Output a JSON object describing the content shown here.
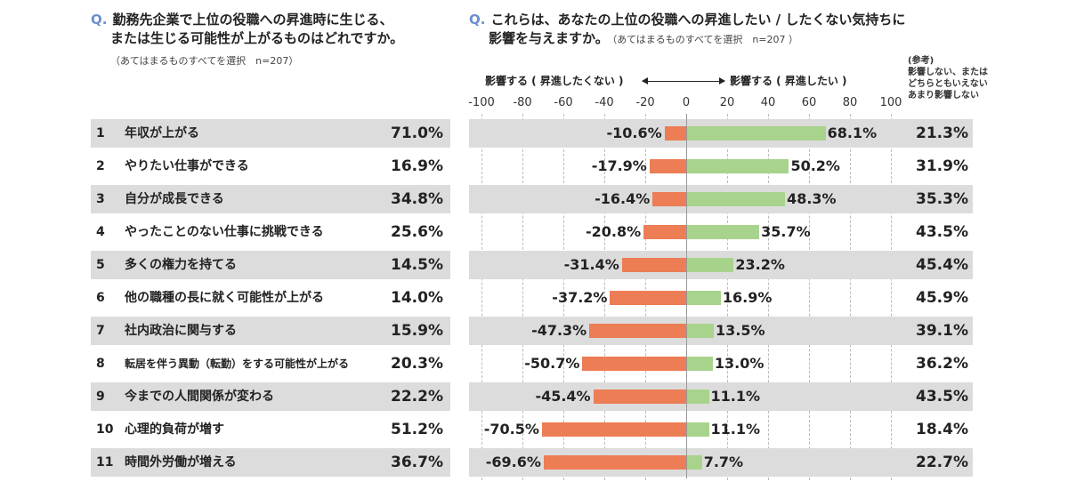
{
  "left_question": {
    "prefix": "Q.",
    "line1": "勤務先企業で上位の役職への昇進時に生じる、",
    "line2": "または生じる可能性が上がるものはどれですか。",
    "note": "（あてはまるものすべてを選択　n=207）"
  },
  "right_question": {
    "prefix": "Q.",
    "line1": "これらは、あなたの上位の役職への昇進したい / したくない気持ちに",
    "line2": "影響を与えますか。",
    "note": "（あてはまるものすべてを選択　n=207 ）"
  },
  "reference_note": {
    "line1": "(参考)",
    "line2": "影響しない、または",
    "line3": "どちらともいえない",
    "line4": "あまり影響しない"
  },
  "axis_labels": {
    "negative": "影響する ( 昇進したくない )",
    "positive": "影響する ( 昇進したい )"
  },
  "colors": {
    "negative": "#ec7d55",
    "positive": "#a8d38c",
    "band": "#dcdcdc",
    "accent": "#6a8fd0"
  },
  "chart_data": {
    "type": "bar",
    "orientation": "horizontal-diverging",
    "xlim": [
      -100,
      100
    ],
    "x_ticks": [
      "-100",
      "-80",
      "-60",
      "-40",
      "-20",
      "0",
      "20",
      "40",
      "60",
      "80",
      "100"
    ],
    "categories": [
      "年収が上がる",
      "やりたい仕事ができる",
      "自分が成長できる",
      "やったことのない仕事に挑戦できる",
      "多くの権力を持てる",
      "他の職種の長に就く可能性が上がる",
      "社内政治に関与する",
      "転居を伴う異動（転勤）をする可能性が上がる",
      "今までの人間関係が変わる",
      "心理的負荷が増す",
      "時間外労働が増える"
    ],
    "numbers": [
      "1",
      "2",
      "3",
      "4",
      "5",
      "6",
      "7",
      "8",
      "9",
      "10",
      "11"
    ],
    "occurrence": {
      "name": "昇進時に生じる、または生じる可能性が上がるもの",
      "values": [
        71.0,
        16.9,
        34.8,
        25.6,
        14.5,
        14.0,
        15.9,
        20.3,
        22.2,
        51.2,
        36.7
      ],
      "labels": [
        "71.0%",
        "16.9%",
        "34.8%",
        "25.6%",
        "14.5%",
        "14.0%",
        "15.9%",
        "20.3%",
        "22.2%",
        "51.2%",
        "36.7%"
      ]
    },
    "series": [
      {
        "name": "影響する（昇進したくない）",
        "values": [
          -10.6,
          -17.9,
          -16.4,
          -20.8,
          -31.4,
          -37.2,
          -47.3,
          -50.7,
          -45.4,
          -70.5,
          -69.6
        ],
        "labels": [
          "-10.6%",
          "-17.9%",
          "-16.4%",
          "-20.8%",
          "-31.4%",
          "-37.2%",
          "-47.3%",
          "-50.7%",
          "-45.4%",
          "-70.5%",
          "-69.6%"
        ]
      },
      {
        "name": "影響する（昇進したい）",
        "values": [
          68.1,
          50.2,
          48.3,
          35.7,
          23.2,
          16.9,
          13.5,
          13.0,
          11.1,
          11.1,
          7.7
        ],
        "labels": [
          "68.1%",
          "50.2%",
          "48.3%",
          "35.7%",
          "23.2%",
          "16.9%",
          "13.5%",
          "13.0%",
          "11.1%",
          "11.1%",
          "7.7%"
        ]
      }
    ],
    "reference": {
      "name": "影響しない、またはどちらともいえない",
      "values": [
        21.3,
        31.9,
        35.3,
        43.5,
        45.4,
        45.9,
        39.1,
        36.2,
        43.5,
        18.4,
        22.7
      ],
      "labels": [
        "21.3%",
        "31.9%",
        "35.3%",
        "43.5%",
        "45.4%",
        "45.9%",
        "39.1%",
        "36.2%",
        "43.5%",
        "18.4%",
        "22.7%"
      ]
    }
  }
}
